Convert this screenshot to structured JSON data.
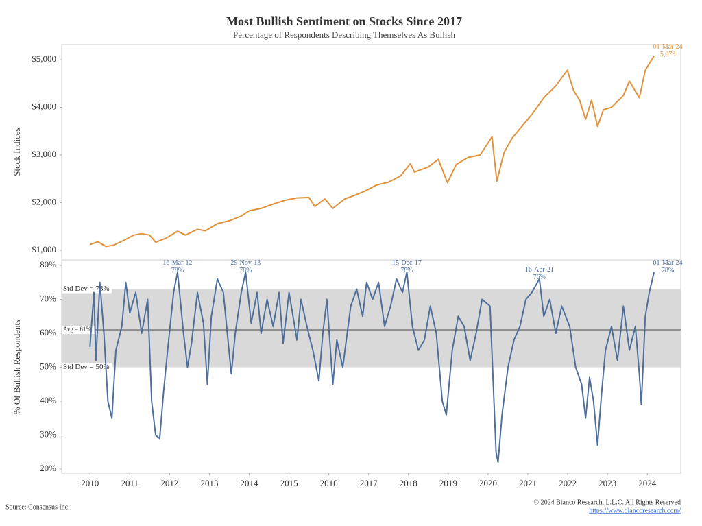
{
  "title": "Most Bullish Sentiment on Stocks Since 2017",
  "subtitle": "Percentage of Respondents Describing Themselves As Bullish",
  "footer": {
    "source": "Source: Consensus Inc.",
    "copyright": "© 2024 Bianco Research, L.L.C. All Rights Reserved",
    "url": "https://www.biancoresearch.com/"
  },
  "chart_data": [
    {
      "type": "line",
      "ylabel": "Stock Indices",
      "color": "#e0913a",
      "xlim": [
        2009.29,
        2024.84
      ],
      "ylim": [
        813,
        5317
      ],
      "yticks": [
        {
          "value": 1000,
          "label": "$1,000"
        },
        {
          "value": 2000,
          "label": "$2,000"
        },
        {
          "value": 3000,
          "label": "$3,000"
        },
        {
          "value": 4000,
          "label": "$4,000"
        },
        {
          "value": 5000,
          "label": "$5,000"
        }
      ],
      "x": [
        2010.0,
        2010.2,
        2010.4,
        2010.6,
        2010.9,
        2011.1,
        2011.3,
        2011.5,
        2011.65,
        2011.9,
        2012.2,
        2012.4,
        2012.7,
        2012.9,
        2013.2,
        2013.5,
        2013.8,
        2014.0,
        2014.3,
        2014.6,
        2014.9,
        2015.2,
        2015.5,
        2015.65,
        2015.9,
        2016.1,
        2016.4,
        2016.7,
        2016.9,
        2017.2,
        2017.5,
        2017.8,
        2018.05,
        2018.15,
        2018.5,
        2018.75,
        2018.98,
        2019.2,
        2019.5,
        2019.8,
        2020.1,
        2020.22,
        2020.4,
        2020.6,
        2020.9,
        2021.1,
        2021.4,
        2021.7,
        2021.99,
        2022.15,
        2022.3,
        2022.45,
        2022.6,
        2022.75,
        2022.9,
        2023.1,
        2023.4,
        2023.55,
        2023.8,
        2023.95,
        2024.17
      ],
      "values": [
        1120,
        1180,
        1080,
        1110,
        1230,
        1320,
        1350,
        1320,
        1170,
        1250,
        1400,
        1320,
        1440,
        1410,
        1560,
        1620,
        1720,
        1830,
        1880,
        1970,
        2050,
        2100,
        2110,
        1920,
        2080,
        1880,
        2080,
        2170,
        2240,
        2370,
        2430,
        2560,
        2820,
        2640,
        2750,
        2910,
        2420,
        2800,
        2950,
        3000,
        3380,
        2450,
        3050,
        3350,
        3650,
        3850,
        4200,
        4450,
        4780,
        4350,
        4150,
        3750,
        4150,
        3600,
        3950,
        4000,
        4250,
        4550,
        4200,
        4780,
        5079
      ],
      "annotations": [
        {
          "x": 2024.17,
          "date": "01-Mar-24",
          "value": 5079,
          "value_label": "5,079"
        }
      ]
    },
    {
      "type": "line",
      "ylabel": "% Of Bullish Respondents",
      "color": "#4e6f9c",
      "xlim": [
        2009.29,
        2024.84
      ],
      "ylim": [
        18.8,
        81.4
      ],
      "xticks": [
        2010,
        2011,
        2012,
        2013,
        2014,
        2015,
        2016,
        2017,
        2018,
        2019,
        2020,
        2021,
        2022,
        2023,
        2024
      ],
      "yticks": [
        {
          "value": 20,
          "label": "20%"
        },
        {
          "value": 30,
          "label": "30%"
        },
        {
          "value": 40,
          "label": "40%"
        },
        {
          "value": 50,
          "label": "50%"
        },
        {
          "value": 60,
          "label": "60%"
        },
        {
          "value": 70,
          "label": "70%"
        },
        {
          "value": 80,
          "label": "80%"
        }
      ],
      "band": {
        "high": {
          "value": 73,
          "label": "Std Dev = 73%"
        },
        "avg": {
          "value": 61,
          "label": "Avg = 61%"
        },
        "low": {
          "value": 50,
          "label": "Std Dev = 50%"
        }
      },
      "x": [
        2010.0,
        2010.1,
        2010.15,
        2010.25,
        2010.35,
        2010.45,
        2010.55,
        2010.65,
        2010.8,
        2010.9,
        2011.0,
        2011.15,
        2011.3,
        2011.45,
        2011.55,
        2011.65,
        2011.75,
        2011.85,
        2011.95,
        2012.1,
        2012.2,
        2012.35,
        2012.45,
        2012.55,
        2012.7,
        2012.85,
        2012.95,
        2013.05,
        2013.2,
        2013.35,
        2013.45,
        2013.55,
        2013.65,
        2013.8,
        2013.91,
        2014.05,
        2014.2,
        2014.3,
        2014.45,
        2014.6,
        2014.75,
        2014.85,
        2015.0,
        2015.2,
        2015.3,
        2015.45,
        2015.6,
        2015.75,
        2015.85,
        2015.95,
        2016.1,
        2016.2,
        2016.35,
        2016.55,
        2016.7,
        2016.85,
        2016.95,
        2017.1,
        2017.25,
        2017.4,
        2017.55,
        2017.7,
        2017.85,
        2017.96,
        2018.1,
        2018.25,
        2018.4,
        2018.55,
        2018.7,
        2018.85,
        2018.95,
        2019.1,
        2019.25,
        2019.4,
        2019.55,
        2019.7,
        2019.85,
        2020.05,
        2020.2,
        2020.25,
        2020.35,
        2020.5,
        2020.65,
        2020.8,
        2020.95,
        2021.1,
        2021.29,
        2021.4,
        2021.55,
        2021.7,
        2021.85,
        2021.95,
        2022.05,
        2022.2,
        2022.35,
        2022.45,
        2022.55,
        2022.65,
        2022.75,
        2022.85,
        2022.95,
        2023.1,
        2023.25,
        2023.4,
        2023.55,
        2023.7,
        2023.8,
        2023.85,
        2023.95,
        2024.05,
        2024.17
      ],
      "values": [
        56,
        72,
        52,
        75,
        60,
        40,
        35,
        55,
        62,
        75,
        66,
        72,
        60,
        70,
        40,
        30,
        29,
        43,
        55,
        72,
        78,
        60,
        50,
        57,
        72,
        63,
        45,
        65,
        76,
        72,
        60,
        48,
        60,
        72,
        78,
        63,
        72,
        60,
        70,
        62,
        72,
        57,
        72,
        58,
        70,
        62,
        55,
        46,
        60,
        70,
        45,
        58,
        50,
        68,
        73,
        65,
        75,
        70,
        75,
        62,
        68,
        76,
        72,
        78,
        62,
        55,
        58,
        68,
        60,
        40,
        36,
        55,
        65,
        62,
        52,
        60,
        70,
        68,
        25,
        22,
        36,
        50,
        58,
        62,
        70,
        72,
        76,
        65,
        70,
        60,
        68,
        65,
        62,
        50,
        45,
        35,
        47,
        40,
        27,
        42,
        55,
        62,
        52,
        68,
        55,
        62,
        48,
        39,
        65,
        72,
        78
      ],
      "annotations": [
        {
          "x": 2012.2,
          "date": "16-Mar-12",
          "value": 78,
          "value_label": "78%"
        },
        {
          "x": 2013.91,
          "date": "29-Nov-13",
          "value": 78,
          "value_label": "78%"
        },
        {
          "x": 2017.96,
          "date": "15-Dec-17",
          "value": 78,
          "value_label": "78%"
        },
        {
          "x": 2021.29,
          "date": "16-Apr-21",
          "value": 76,
          "value_label": "76%"
        },
        {
          "x": 2024.17,
          "date": "01-Mar-24",
          "value": 78,
          "value_label": "78%"
        }
      ]
    }
  ]
}
